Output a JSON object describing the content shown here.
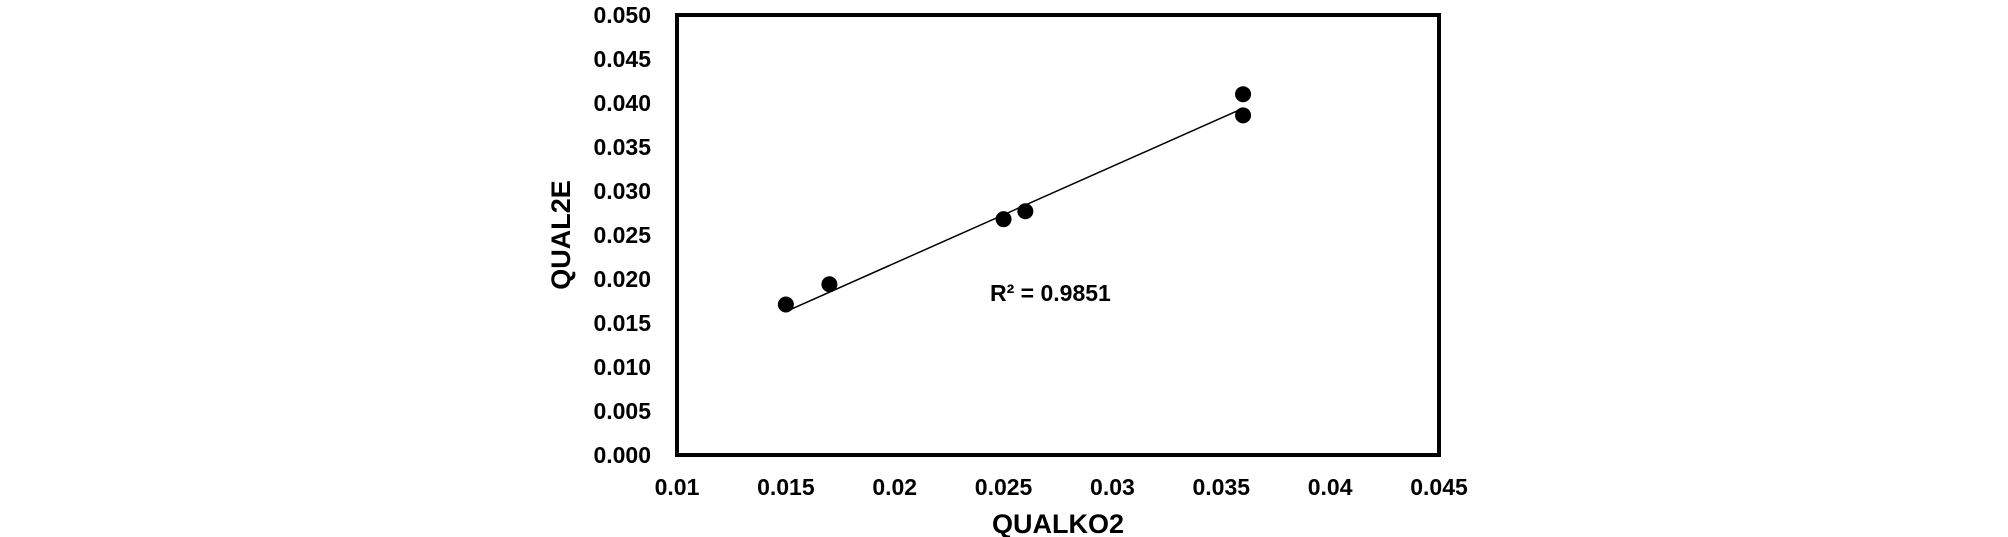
{
  "chart_data": {
    "type": "scatter",
    "title": "",
    "xlabel": "QUALKO2",
    "ylabel": "QUAL2E",
    "xlim": [
      0.01,
      0.045
    ],
    "ylim": [
      0.0,
      0.05
    ],
    "xticks": [
      "0.01",
      "0.015",
      "0.02",
      "0.025",
      "0.03",
      "0.035",
      "0.04",
      "0.045"
    ],
    "yticks": [
      "0.000",
      "0.005",
      "0.010",
      "0.015",
      "0.020",
      "0.025",
      "0.030",
      "0.035",
      "0.040",
      "0.045",
      "0.050"
    ],
    "grid": false,
    "legend": "none",
    "series": [
      {
        "x": [
          0.015,
          0.017,
          0.025,
          0.026,
          0.036,
          0.036
        ],
        "y": [
          0.0171,
          0.0194,
          0.0268,
          0.0277,
          0.0386,
          0.041
        ],
        "color": "#000000"
      }
    ],
    "trendline": {
      "type": "linear",
      "x_range": [
        0.015,
        0.036
      ],
      "y_range": [
        0.0163,
        0.0394
      ],
      "label": "R² = 0.9851",
      "color": "#000000"
    }
  }
}
